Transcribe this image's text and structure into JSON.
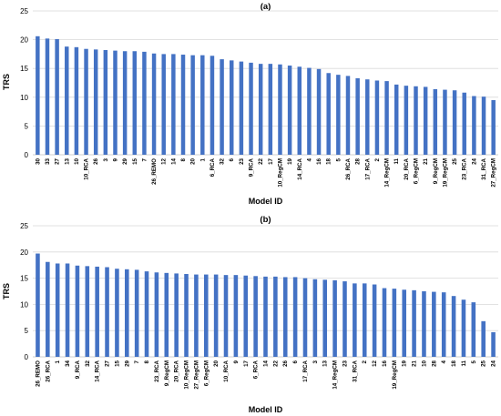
{
  "chart_data": [
    {
      "type": "bar",
      "title": "(a)",
      "xlabel": "Model ID",
      "ylabel": "TRS",
      "ylim": [
        0,
        25
      ],
      "yticks": [
        0,
        5,
        10,
        15,
        20,
        25
      ],
      "grid": true,
      "bar_color": "#4472c4",
      "categories": [
        "30",
        "33",
        "27",
        "13",
        "10",
        "10_RCA",
        "26",
        "3",
        "9",
        "29",
        "15",
        "7",
        "26_REMO",
        "12",
        "14",
        "8",
        "20",
        "1",
        "6_RCA",
        "32",
        "6",
        "23",
        "9_RCA",
        "22",
        "17",
        "10_RegCM",
        "19",
        "14_RCA",
        "4",
        "16",
        "18",
        "5",
        "26_RCA",
        "28",
        "17_RCA",
        "2",
        "14_RegCM",
        "11",
        "20_RCA",
        "6_RegCM",
        "21",
        "9_RegCM",
        "19_RegCM",
        "25",
        "23_RCA",
        "24",
        "31_RCA",
        "27_RegCM"
      ],
      "values": [
        20.6,
        20.2,
        20.1,
        18.8,
        18.7,
        18.4,
        18.3,
        18.2,
        18.1,
        18.0,
        18.0,
        17.9,
        17.6,
        17.5,
        17.5,
        17.4,
        17.3,
        17.3,
        17.2,
        16.6,
        16.4,
        16.2,
        16.0,
        15.8,
        15.8,
        15.7,
        15.5,
        15.3,
        15.1,
        14.9,
        14.2,
        13.9,
        13.7,
        13.3,
        13.1,
        12.9,
        12.8,
        12.2,
        12.0,
        11.9,
        11.8,
        11.4,
        11.3,
        11.2,
        10.8,
        10.2,
        10.1,
        9.5
      ]
    },
    {
      "type": "bar",
      "title": "(b)",
      "xlabel": "Model ID",
      "ylabel": "TRS",
      "ylim": [
        0,
        25
      ],
      "yticks": [
        0,
        5,
        10,
        15,
        20,
        25
      ],
      "grid": true,
      "bar_color": "#4472c4",
      "categories": [
        "26_REMO",
        "26_RCA",
        "1",
        "34",
        "9_RCA",
        "32",
        "14_RCA",
        "27",
        "15",
        "29",
        "7",
        "8",
        "23_RCA",
        "9_RegCM",
        "20_RCA",
        "10_RegCM",
        "27_RegCM",
        "6_RegCM",
        "20",
        "10_RCA",
        "9",
        "17",
        "6_RCA",
        "14",
        "22",
        "26",
        "6",
        "17_RCA",
        "3",
        "13",
        "14_RegCM",
        "23",
        "31_RCA",
        "2",
        "12",
        "16",
        "19_RegCM",
        "19",
        "21",
        "10",
        "28",
        "4",
        "18",
        "11",
        "5",
        "25",
        "24"
      ],
      "values": [
        19.7,
        18.1,
        17.8,
        17.8,
        17.4,
        17.3,
        17.2,
        17.1,
        16.8,
        16.7,
        16.6,
        16.3,
        16.1,
        16.0,
        15.9,
        15.8,
        15.7,
        15.7,
        15.7,
        15.6,
        15.6,
        15.5,
        15.4,
        15.3,
        15.3,
        15.2,
        15.2,
        15.0,
        14.8,
        14.7,
        14.6,
        14.4,
        14.0,
        14.0,
        13.8,
        13.1,
        13.0,
        12.8,
        12.7,
        12.5,
        12.4,
        12.3,
        11.6,
        10.9,
        10.4,
        6.8,
        4.7
      ]
    }
  ]
}
